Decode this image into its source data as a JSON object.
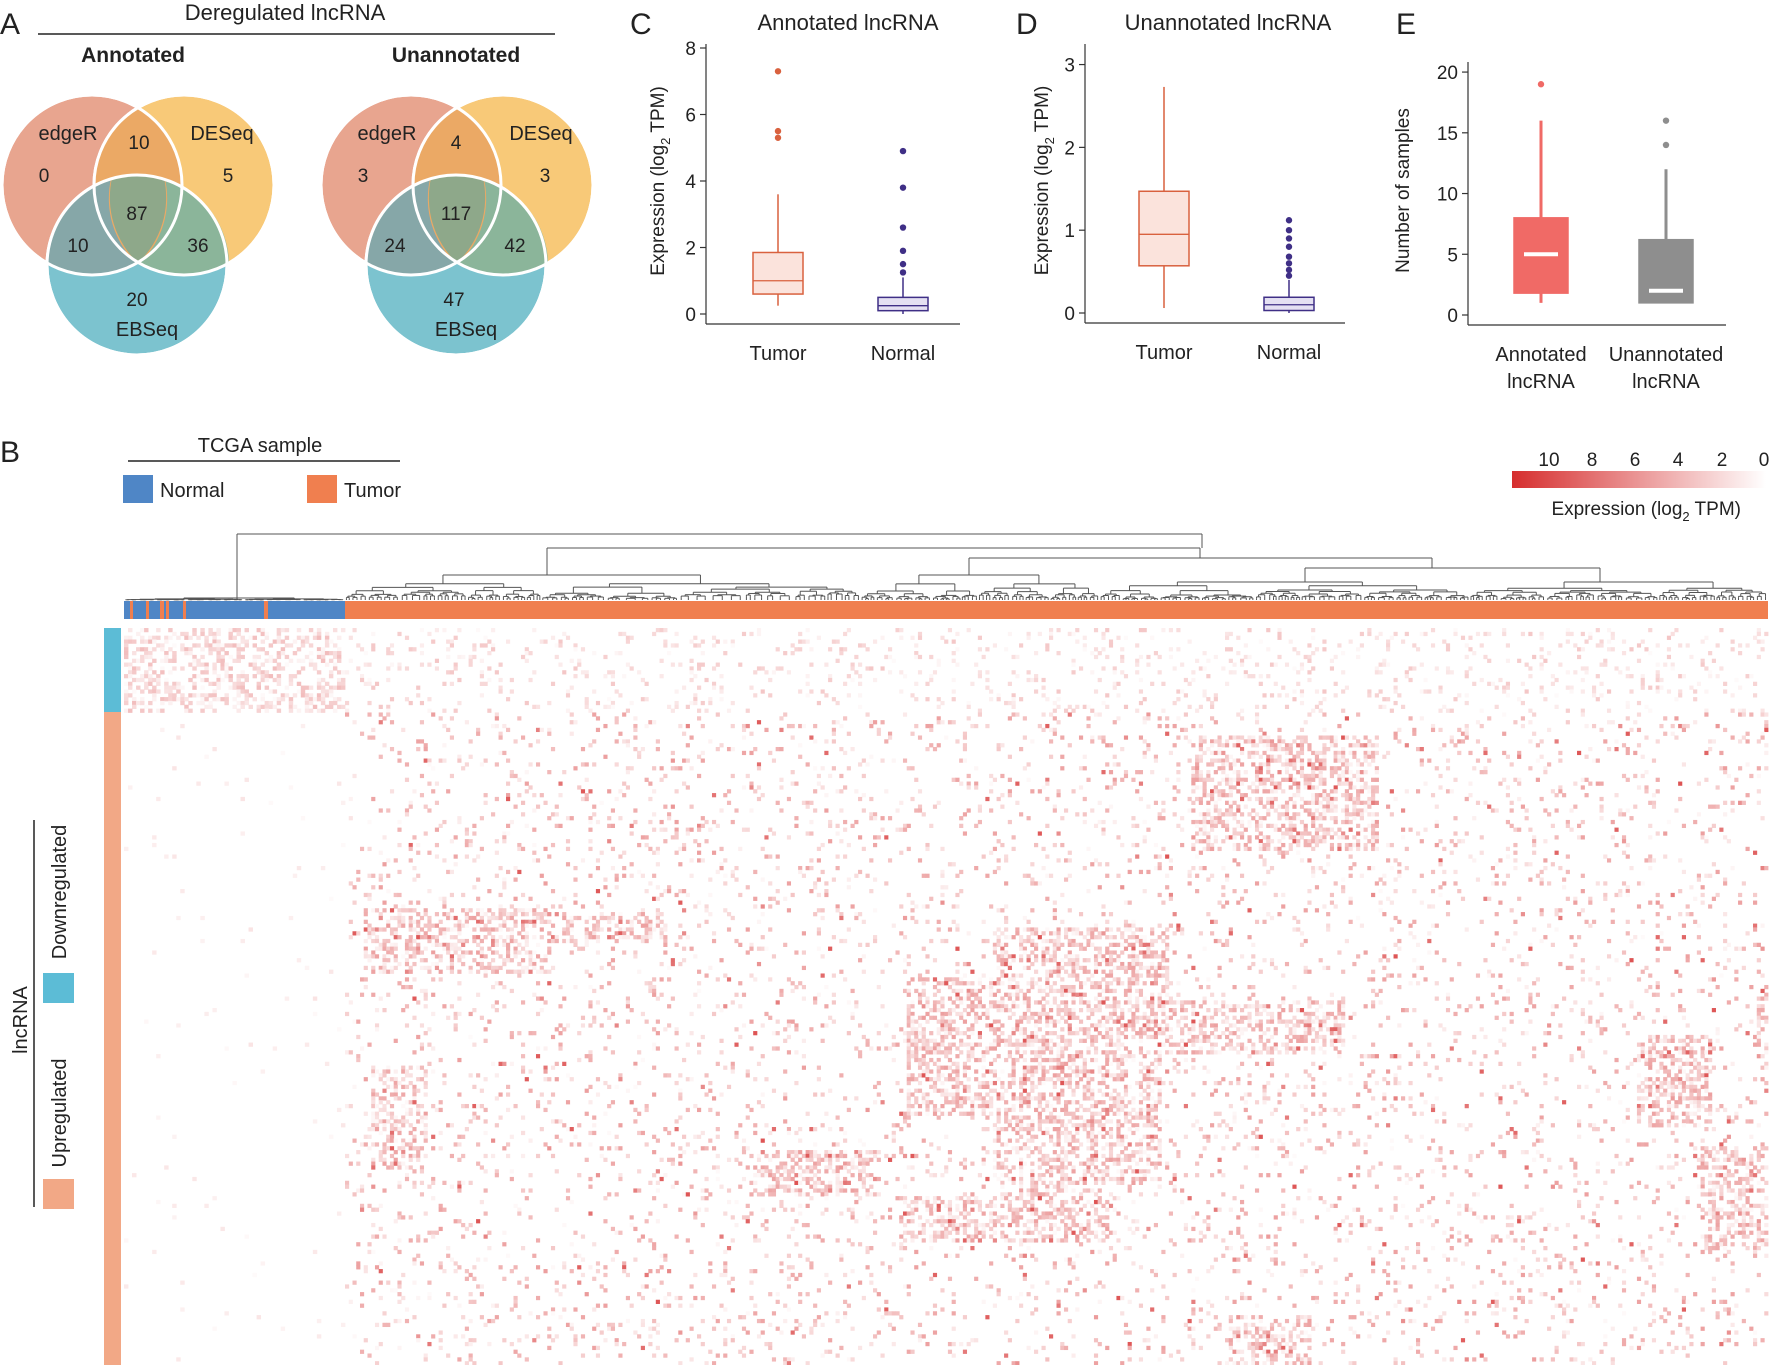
{
  "panels": {
    "A": "A",
    "B": "B",
    "C": "C",
    "D": "D",
    "E": "E"
  },
  "venn": {
    "title": "Deregulated lncRNA",
    "colors": {
      "edgeR": "#e8a58f",
      "DESeq": "#f8c978",
      "EBSeq": "#7cc3cf"
    },
    "annotated": {
      "subtitle": "Annotated",
      "labels": {
        "edgeR": "edgeR",
        "DESeq": "DESeq",
        "EBSeq": "EBSeq"
      },
      "counts": {
        "edgeR_only": "0",
        "edgeR_DESeq": "10",
        "DESeq_only": "5",
        "all": "87",
        "edgeR_EBSeq": "10",
        "DESeq_EBSeq": "36",
        "EBSeq_only": "20"
      }
    },
    "unannotated": {
      "subtitle": "Unannotated",
      "labels": {
        "edgeR": "edgeR",
        "DESeq": "DESeq",
        "EBSeq": "EBSeq"
      },
      "counts": {
        "edgeR_only": "3",
        "edgeR_DESeq": "4",
        "DESeq_only": "3",
        "all": "117",
        "edgeR_EBSeq": "24",
        "DESeq_EBSeq": "42",
        "EBSeq_only": "47"
      }
    }
  },
  "chart_data": [
    {
      "id": "C",
      "type": "box",
      "title": "Annotated lncRNA",
      "ylabel_pre": "Expression (log",
      "ylabel_sub": "2",
      "ylabel_post": " TPM)",
      "ylim": [
        0,
        8
      ],
      "yticks": [
        0,
        2,
        4,
        6,
        8
      ],
      "categories": [
        "Tumor",
        "Normal"
      ],
      "series": [
        {
          "name": "Tumor",
          "color": "#d9613e",
          "fill": "#fbe3dc",
          "q1": 0.6,
          "median": 1.0,
          "q3": 1.85,
          "whisker_low": 0.25,
          "whisker_high": 3.6,
          "outliers": [
            5.3,
            5.5,
            7.3
          ]
        },
        {
          "name": "Normal",
          "color": "#3f2f86",
          "fill": "#e4e0f2",
          "q1": 0.1,
          "median": 0.25,
          "q3": 0.5,
          "whisker_low": 0.0,
          "whisker_high": 1.1,
          "outliers": [
            1.25,
            1.5,
            1.9,
            2.6,
            3.8,
            4.9
          ]
        }
      ]
    },
    {
      "id": "D",
      "type": "box",
      "title": "Unannotated lncRNA",
      "ylabel_pre": "Expression (log",
      "ylabel_sub": "2",
      "ylabel_post": " TPM)",
      "ylim": [
        0,
        3.2
      ],
      "yticks": [
        0,
        1,
        2,
        3
      ],
      "categories": [
        "Tumor",
        "Normal"
      ],
      "series": [
        {
          "name": "Tumor",
          "color": "#d9613e",
          "fill": "#fbe3dc",
          "q1": 0.57,
          "median": 0.95,
          "q3": 1.47,
          "whisker_low": 0.06,
          "whisker_high": 2.73,
          "outliers": []
        },
        {
          "name": "Normal",
          "color": "#3f2f86",
          "fill": "#e4e0f2",
          "q1": 0.03,
          "median": 0.1,
          "q3": 0.19,
          "whisker_low": 0.0,
          "whisker_high": 0.4,
          "outliers": [
            0.45,
            0.52,
            0.6,
            0.68,
            0.8,
            0.9,
            1.0,
            1.12
          ]
        }
      ]
    },
    {
      "id": "E",
      "type": "box",
      "title": "",
      "ylabel": "Number of samples",
      "ylim": [
        0,
        20.5
      ],
      "yticks": [
        0,
        5,
        10,
        15,
        20
      ],
      "categories": [
        "Annotated lncRNA",
        "Unannotated lncRNA"
      ],
      "category_lines": [
        [
          "Annotated",
          "lncRNA"
        ],
        [
          "Unannotated",
          "lncRNA"
        ]
      ],
      "series": [
        {
          "name": "Annotated lncRNA",
          "color": "#f06a66",
          "fill": "#f06a66",
          "median_color": "#ffffff",
          "q1": 1.8,
          "median": 5,
          "q3": 8,
          "whisker_low": 1,
          "whisker_high": 16,
          "outliers": [
            19
          ]
        },
        {
          "name": "Unannotated lncRNA",
          "color": "#8e8e8e",
          "fill": "#8e8e8e",
          "median_color": "#ffffff",
          "q1": 1,
          "median": 2,
          "q3": 6.2,
          "whisker_low": 1,
          "whisker_high": 12,
          "outliers": [
            14,
            16
          ]
        }
      ]
    },
    {
      "id": "B",
      "type": "heatmap",
      "title": "TCGA sample",
      "legend": [
        {
          "label": "Normal",
          "color": "#4f86c6"
        },
        {
          "label": "Tumor",
          "color": "#f07f4f"
        }
      ],
      "colorbar": {
        "ticks": [
          "10",
          "8",
          "6",
          "4",
          "2",
          "0"
        ],
        "label_pre": "Expression (log",
        "label_sub": "2",
        "label_post": " TPM)",
        "low": "#ffffff",
        "high": "#d62e2e",
        "range": [
          0,
          11
        ]
      },
      "row_group_title": "lncRNA",
      "row_groups": [
        {
          "label": "Downregulated",
          "color": "#5cbcd6"
        },
        {
          "label": "Upregulated",
          "color": "#f2a886"
        }
      ],
      "samples": {
        "normal": 55,
        "tumor": 380
      },
      "lncrnas": {
        "downregulated": 22,
        "upregulated": 170
      }
    }
  ]
}
